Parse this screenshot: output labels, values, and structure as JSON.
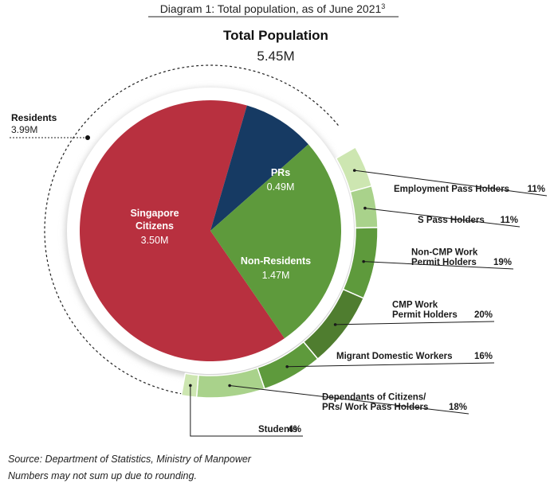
{
  "diagram_title": {
    "text": "Diagram 1: Total population, as of June 2021",
    "sup": "3"
  },
  "total": {
    "label": "Total Population",
    "value": "5.45M"
  },
  "residents_callout": {
    "label": "Residents",
    "value": "3.99M"
  },
  "source": "Source: Department of Statistics, Ministry of Manpower",
  "rounding_note": "Numbers may not sum up due to rounding.",
  "colors": {
    "citizens": "#b8303f",
    "prs": "#163a63",
    "non_residents": "#5e9a3c",
    "ring": [
      "#cde6b1",
      "#a9d28b",
      "#5e9a3c",
      "#4f7d2f",
      "#5e9a3c",
      "#a9d28b",
      "#cde6b1"
    ]
  },
  "chart_data": [
    {
      "type": "pie",
      "title": "Total Population",
      "total": "5.45M",
      "slices": [
        {
          "name": "Singapore Citizens",
          "value": 3.5,
          "label": "3.50M",
          "group": "Residents"
        },
        {
          "name": "PRs",
          "value": 0.49,
          "label": "0.49M",
          "group": "Residents"
        },
        {
          "name": "Non-Residents",
          "value": 1.47,
          "label": "1.47M",
          "group": "Non-Residents"
        }
      ]
    },
    {
      "type": "pie",
      "title": "Non-Residents",
      "unit": "%",
      "slices": [
        {
          "name": "Employment Pass Holders",
          "value": 11,
          "label": "11%"
        },
        {
          "name": "S Pass Holders",
          "value": 11,
          "label": "11%"
        },
        {
          "name": "Non-CMP Work Permit Holders",
          "value": 19,
          "label": "19%"
        },
        {
          "name": "CMP Work Permit Holders",
          "value": 20,
          "label": "20%"
        },
        {
          "name": "Migrant Domestic Workers",
          "value": 16,
          "label": "16%"
        },
        {
          "name": "Dependants of Citizens/ PRs/ Work Pass Holders",
          "value": 18,
          "label": "18%"
        },
        {
          "name": "Students",
          "value": 4,
          "label": "4%"
        }
      ]
    }
  ],
  "text_labels": {
    "citizens": [
      "Singapore",
      "Citizens"
    ],
    "non_residents": [
      "Non-Residents"
    ],
    "ring": [
      [
        "Employment Pass Holders"
      ],
      [
        "S Pass Holders"
      ],
      [
        "Non-CMP Work",
        "Permit Holders"
      ],
      [
        "CMP Work",
        "Permit Holders"
      ],
      [
        "Migrant Domestic Workers"
      ],
      [
        "Dependants of Citizens/",
        "PRs/ Work Pass Holders"
      ],
      [
        "Students"
      ]
    ]
  }
}
